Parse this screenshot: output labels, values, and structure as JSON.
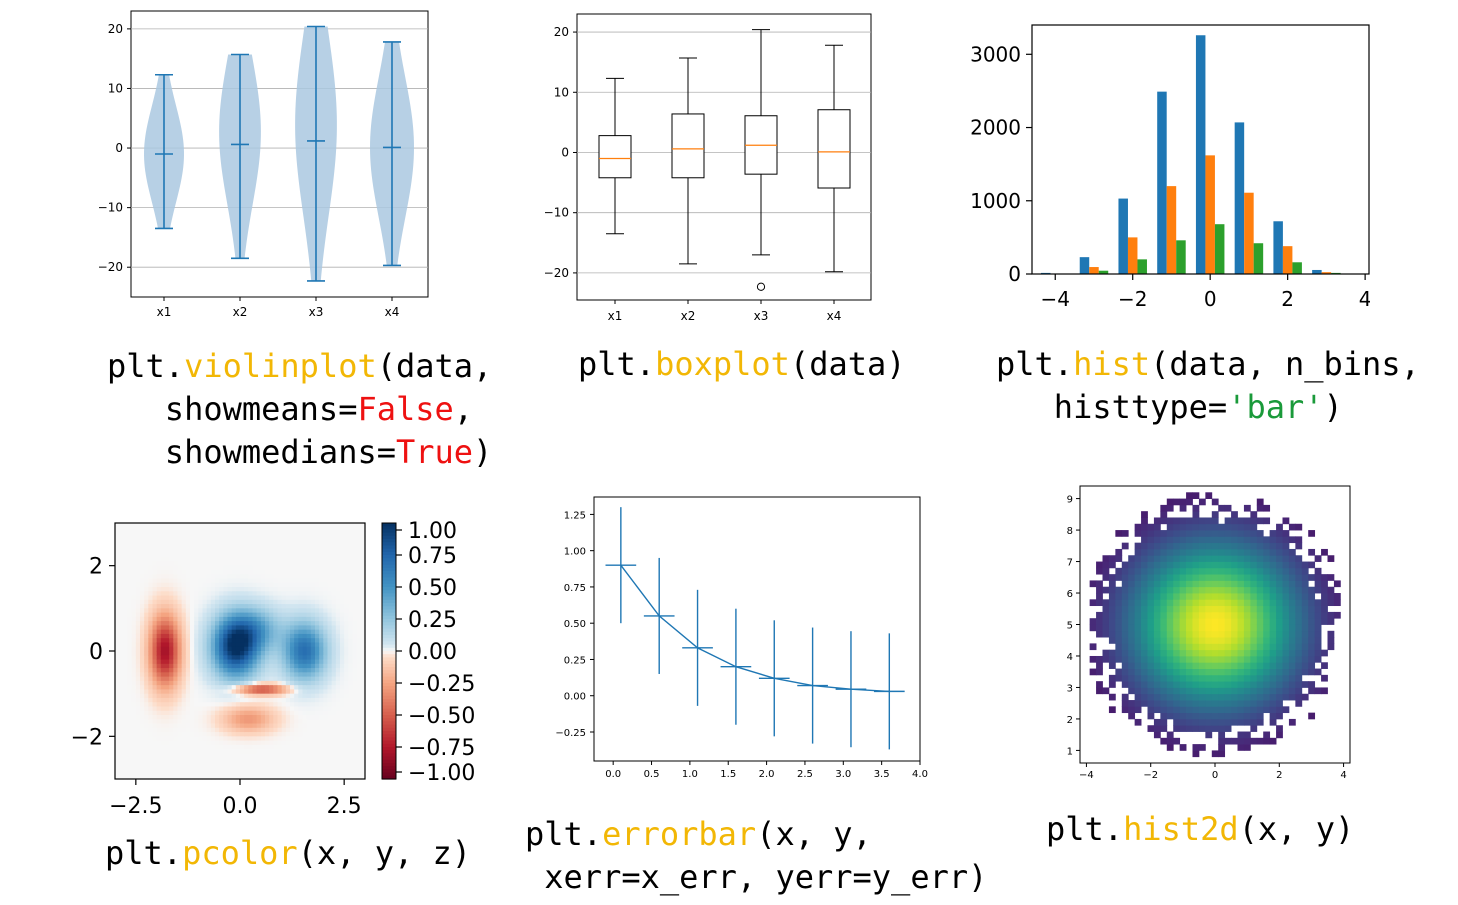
{
  "palette": {
    "tab_blue": "#1f77b4",
    "tab_orange": "#ff7f0e",
    "tab_green": "#2ca02c",
    "violin_fill": "#aac8e0",
    "grid": "#b0b0b0",
    "caption_function": "#f2b705",
    "caption_bool": "#ee1111",
    "caption_string": "#1a9a3a"
  },
  "captions": {
    "violin": {
      "l1a": "plt.",
      "fn": "violinplot",
      "l1b": "(data,",
      "l2a": "   showmeans=",
      "kw1": "False",
      "l2b": ",",
      "l3a": "   showmedians=",
      "kw2": "True",
      "l3b": ")"
    },
    "box": {
      "a": "plt.",
      "fn": "boxplot",
      "b": "(data)"
    },
    "hist": {
      "a": "plt.",
      "fn": "hist",
      "b": "(data, n_bins,",
      "c": "   histtype=",
      "str": "'bar'",
      "d": ")"
    },
    "pcolor": {
      "a": "plt.",
      "fn": "pcolor",
      "b": "(x, y, z)"
    },
    "errorbar": {
      "a": "plt.",
      "fn": "errorbar",
      "b": "(x, y,",
      "c": " xerr=x_err, yerr=y_err)"
    },
    "hist2d": {
      "a": "plt.",
      "fn": "hist2d",
      "b": "(x, y)"
    }
  },
  "chart_data": [
    {
      "type": "violin",
      "categories": [
        "x1",
        "x2",
        "x3",
        "x4"
      ],
      "mins": [
        -13.5,
        -18.5,
        -22.3,
        -19.7
      ],
      "maxs": [
        12.3,
        15.7,
        20.4,
        17.8
      ],
      "medians": [
        -1.0,
        0.6,
        1.2,
        0.1
      ],
      "ylim": [
        -25,
        23
      ],
      "yticks": [
        20,
        10,
        0,
        -10,
        -20
      ],
      "grid": true
    },
    {
      "type": "box",
      "categories": [
        "x1",
        "x2",
        "x3",
        "x4"
      ],
      "whisker_low": [
        -13.5,
        -18.5,
        -17.0,
        -19.8
      ],
      "q1": [
        -4.2,
        -4.2,
        -3.6,
        -5.9
      ],
      "median": [
        -1.0,
        0.6,
        1.2,
        0.1
      ],
      "q3": [
        2.8,
        6.4,
        6.1,
        7.1
      ],
      "whisker_high": [
        12.3,
        15.7,
        20.4,
        17.8
      ],
      "outliers": [
        {
          "category": "x3",
          "value": -22.3
        }
      ],
      "ylim": [
        -24.5,
        23
      ],
      "yticks": [
        20,
        10,
        0,
        -10,
        -20
      ],
      "grid": true
    },
    {
      "type": "bar",
      "x": [
        -4,
        -3,
        -2,
        -1,
        0,
        1,
        2,
        3
      ],
      "series": [
        {
          "values": [
            15,
            230,
            1030,
            2490,
            3260,
            2070,
            720,
            55
          ]
        },
        {
          "values": [
            5,
            95,
            500,
            1200,
            1620,
            1110,
            380,
            25
          ]
        },
        {
          "values": [
            2,
            45,
            200,
            460,
            680,
            420,
            160,
            15
          ]
        }
      ],
      "xlim": [
        -4.6,
        4.1
      ],
      "ylim": [
        0,
        3400
      ],
      "xticks": [
        -4,
        -2,
        0,
        2,
        4
      ],
      "yticks": [
        0,
        1000,
        2000,
        3000
      ]
    },
    {
      "type": "heatmap",
      "xlim": [
        -3,
        3
      ],
      "ylim": [
        -3,
        3
      ],
      "xticks": [
        -2.5,
        0.0,
        2.5
      ],
      "yticks": [
        2,
        0,
        -2
      ],
      "colormap": "RdBu",
      "colorbar_ticks": [
        1.0,
        0.75,
        0.5,
        0.25,
        0.0,
        -0.25,
        -0.5,
        -0.75,
        -1.0
      ]
    },
    {
      "type": "errorbar",
      "x": [
        0.1,
        0.6,
        1.1,
        1.6,
        2.1,
        2.6,
        3.1,
        3.6
      ],
      "y": [
        0.9,
        0.55,
        0.33,
        0.2,
        0.12,
        0.07,
        0.045,
        0.03
      ],
      "xerr": [
        0.2,
        0.2,
        0.2,
        0.2,
        0.2,
        0.2,
        0.2,
        0.2
      ],
      "yerr": [
        0.4,
        0.4,
        0.4,
        0.4,
        0.4,
        0.4,
        0.4,
        0.4
      ],
      "xlim": [
        -0.25,
        4.0
      ],
      "ylim": [
        -0.45,
        1.37
      ],
      "xticks": [
        0.0,
        0.5,
        1.0,
        1.5,
        2.0,
        2.5,
        3.0,
        3.5,
        4.0
      ],
      "yticks": [
        1.25,
        1.0,
        0.75,
        0.5,
        0.25,
        0.0,
        -0.25
      ]
    },
    {
      "type": "heatmap",
      "center": [
        0,
        5
      ],
      "spread": 1.6,
      "colormap": "viridis",
      "xlim": [
        -4.2,
        4.2
      ],
      "ylim": [
        0.6,
        9.4
      ],
      "xticks": [
        -4,
        -2,
        0,
        2,
        4
      ],
      "yticks": [
        9,
        8,
        7,
        6,
        5,
        4,
        3,
        2,
        1
      ]
    }
  ]
}
